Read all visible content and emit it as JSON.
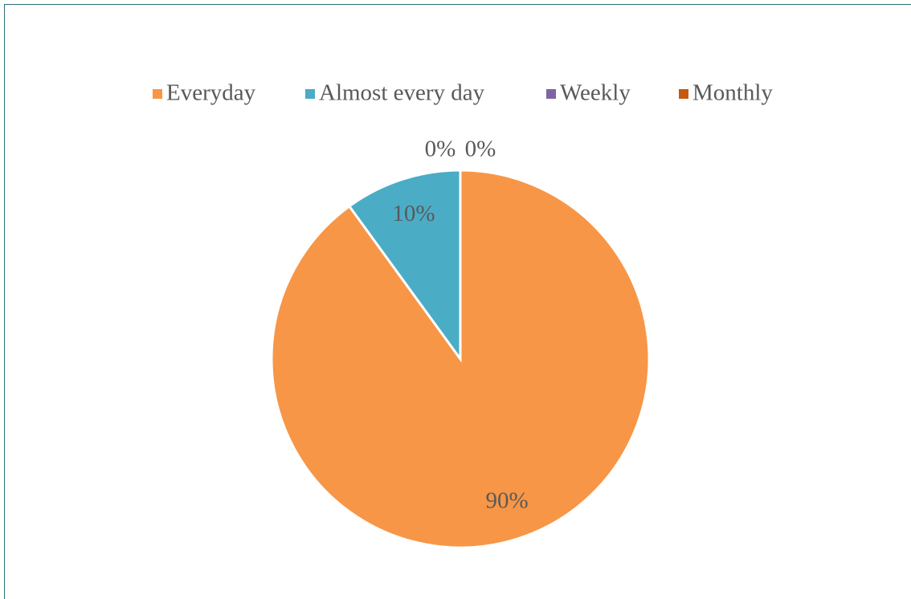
{
  "chart_data": {
    "type": "pie",
    "categories": [
      "Everyday",
      "Almost every day",
      "Weekly",
      "Monthly"
    ],
    "values": [
      90,
      10,
      0,
      0
    ],
    "value_labels": [
      "90%",
      "10%",
      "0%",
      "0%"
    ],
    "colors": [
      "#f79646",
      "#4bacc6",
      "#8064a2",
      "#c55a11"
    ],
    "legend": "top"
  }
}
